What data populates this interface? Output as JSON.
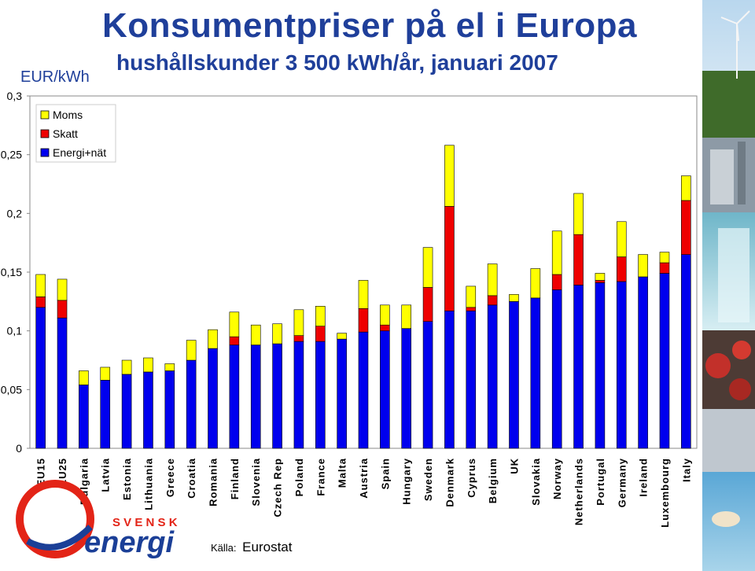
{
  "header": {
    "title": "Konsumentpriser på el i Europa",
    "subtitle": "hushållskunder 3 500 kWh/år, januari 2007",
    "unit": "EUR/kWh"
  },
  "footer": {
    "source_label": "Källa:",
    "source_name": "Eurostat"
  },
  "logo": {
    "line1": "S V E N S K",
    "line2": "energi",
    "colors": {
      "red": "#e32417",
      "blue": "#1b3f97"
    }
  },
  "colors": {
    "energi": "#0000ee",
    "skatt": "#ee0000",
    "moms": "#ffff00",
    "title": "#1f3f9a"
  },
  "chart_data": {
    "type": "bar",
    "stacked": true,
    "categories": [
      "EU15",
      "EU25",
      "Bulgaria",
      "Latvia",
      "Estonia",
      "Lithuania",
      "Greece",
      "Croatia",
      "Romania",
      "Finland",
      "Slovenia",
      "Czech Rep",
      "Poland",
      "France",
      "Malta",
      "Austria",
      "Spain",
      "Hungary",
      "Sweden",
      "Denmark",
      "Cyprus",
      "Belgium",
      "UK",
      "Slovakia",
      "Norway",
      "Netherlands",
      "Portugal",
      "Germany",
      "Ireland",
      "Luxembourg",
      "Italy"
    ],
    "series": [
      {
        "name": "Energi+nät",
        "color": "#0000ee",
        "values": [
          0.12,
          0.111,
          0.054,
          0.058,
          0.063,
          0.065,
          0.066,
          0.075,
          0.085,
          0.088,
          0.088,
          0.089,
          0.091,
          0.091,
          0.093,
          0.099,
          0.1,
          0.102,
          0.108,
          0.117,
          0.117,
          0.122,
          0.125,
          0.128,
          0.135,
          0.139,
          0.141,
          0.142,
          0.146,
          0.149,
          0.165
        ]
      },
      {
        "name": "Skatt",
        "color": "#ee0000",
        "values": [
          0.009,
          0.015,
          0,
          0,
          0,
          0,
          0,
          0,
          0,
          0.007,
          0,
          0,
          0.005,
          0.013,
          0,
          0.02,
          0.005,
          0,
          0.029,
          0.089,
          0.003,
          0.008,
          0,
          0,
          0.013,
          0.043,
          0.002,
          0.021,
          0,
          0.009,
          0.046
        ]
      },
      {
        "name": "Moms",
        "color": "#ffff00",
        "values": [
          0.019,
          0.018,
          0.012,
          0.011,
          0.012,
          0.012,
          0.006,
          0.017,
          0.016,
          0.021,
          0.017,
          0.017,
          0.022,
          0.017,
          0.005,
          0.024,
          0.017,
          0.02,
          0.034,
          0.052,
          0.018,
          0.027,
          0.006,
          0.025,
          0.037,
          0.035,
          0.006,
          0.03,
          0.019,
          0.009,
          0.021
        ]
      }
    ],
    "legend": {
      "position": "top-left",
      "items": [
        "Moms",
        "Skatt",
        "Energi+nät"
      ]
    },
    "yticks": [
      "0",
      "0,05",
      "0,1",
      "0,15",
      "0,2",
      "0,25",
      "0,3"
    ],
    "ytick_values": [
      0,
      0.05,
      0.1,
      0.15,
      0.2,
      0.25,
      0.3
    ],
    "ylim": [
      0,
      0.3
    ],
    "ylabel": "EUR/kWh",
    "grid": false
  }
}
